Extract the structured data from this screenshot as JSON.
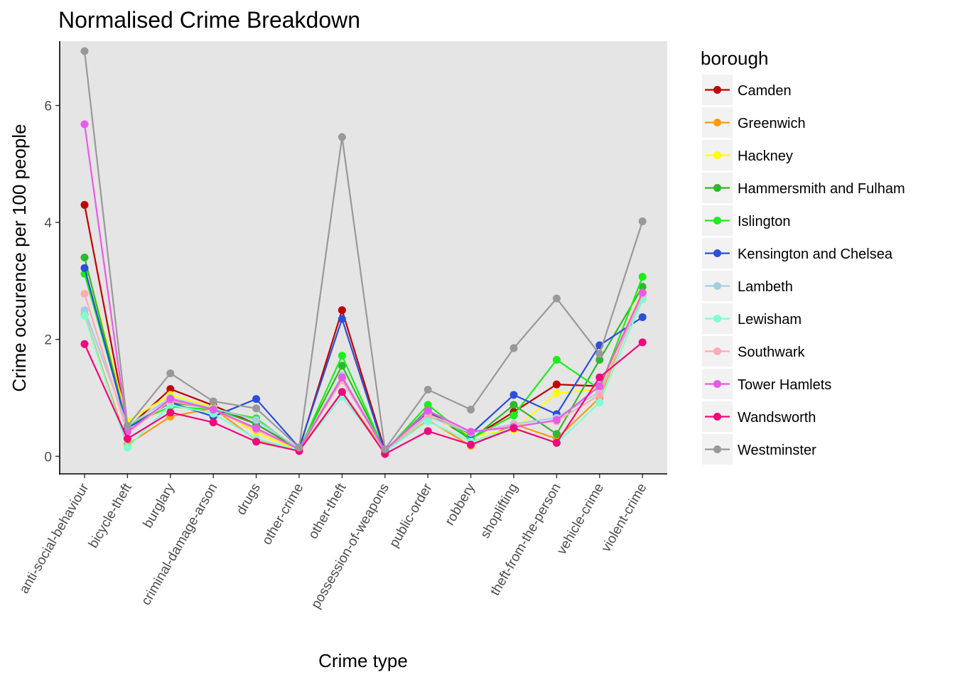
{
  "chart_data": {
    "type": "line",
    "title": "Normalised Crime Breakdown",
    "xlabel": "Crime type",
    "ylabel": "Crime occurence per 100 people",
    "ylim": [
      -0.3,
      7.1
    ],
    "yticks": [
      0,
      2,
      4,
      6
    ],
    "grid": false,
    "legend": {
      "title": "borough",
      "position": "right"
    },
    "categories": [
      "anti-social-behaviour",
      "bicycle-theft",
      "burglary",
      "criminal-damage-arson",
      "drugs",
      "other-crime",
      "other-theft",
      "possession-of-weapons",
      "public-order",
      "robbery",
      "shoplifting",
      "theft-from-the-person",
      "vehicle-crime",
      "violent-crime"
    ],
    "series": [
      {
        "name": "Camden",
        "color": "#c00000",
        "values": [
          4.3,
          0.48,
          1.15,
          0.87,
          0.55,
          0.12,
          2.5,
          0.1,
          0.75,
          0.3,
          0.76,
          1.23,
          1.2,
          2.8
        ]
      },
      {
        "name": "Greenwich",
        "color": "#ff9910",
        "values": [
          2.42,
          0.2,
          0.68,
          0.82,
          0.28,
          0.11,
          1.1,
          0.08,
          0.62,
          0.18,
          0.55,
          0.3,
          1.0,
          2.82
        ]
      },
      {
        "name": "Hackney",
        "color": "#ffff00",
        "values": [
          3.4,
          0.6,
          1.05,
          0.84,
          0.4,
          0.1,
          1.55,
          0.1,
          0.7,
          0.35,
          0.45,
          1.08,
          1.15,
          2.85
        ]
      },
      {
        "name": "Hammersmith and Fulham",
        "color": "#2eb82e",
        "values": [
          3.4,
          0.5,
          0.92,
          0.82,
          0.55,
          0.13,
          1.55,
          0.1,
          0.8,
          0.28,
          0.88,
          0.38,
          1.65,
          2.9
        ]
      },
      {
        "name": "Islington",
        "color": "#18f018",
        "values": [
          3.12,
          0.52,
          0.85,
          0.8,
          0.65,
          0.1,
          1.72,
          0.08,
          0.88,
          0.3,
          0.7,
          1.65,
          1.15,
          3.07
        ]
      },
      {
        "name": "Kensington and Chelsea",
        "color": "#2c4fd6",
        "values": [
          3.22,
          0.48,
          0.92,
          0.68,
          0.98,
          0.15,
          2.35,
          0.07,
          0.75,
          0.38,
          1.05,
          0.72,
          1.9,
          2.38
        ]
      },
      {
        "name": "Lambeth",
        "color": "#a6cee3",
        "values": [
          2.5,
          0.52,
          1.0,
          0.82,
          0.62,
          0.13,
          1.38,
          0.1,
          0.68,
          0.4,
          0.55,
          0.66,
          1.1,
          2.72
        ]
      },
      {
        "name": "Lewisham",
        "color": "#7fffd4",
        "values": [
          2.4,
          0.15,
          0.88,
          0.73,
          0.3,
          0.1,
          1.02,
          0.08,
          0.6,
          0.25,
          0.48,
          0.22,
          0.92,
          2.68
        ]
      },
      {
        "name": "Southwark",
        "color": "#ffaab5",
        "values": [
          2.78,
          0.4,
          0.95,
          0.8,
          0.45,
          0.12,
          1.3,
          0.1,
          0.72,
          0.42,
          0.52,
          0.6,
          1.05,
          2.78
        ]
      },
      {
        "name": "Tower Hamlets",
        "color": "#e85ae8",
        "values": [
          5.68,
          0.42,
          0.98,
          0.8,
          0.48,
          0.12,
          1.35,
          0.1,
          0.78,
          0.42,
          0.5,
          0.62,
          1.2,
          2.8
        ]
      },
      {
        "name": "Wandsworth",
        "color": "#f0087c",
        "values": [
          1.92,
          0.3,
          0.75,
          0.58,
          0.25,
          0.09,
          1.1,
          0.04,
          0.43,
          0.2,
          0.48,
          0.23,
          1.35,
          1.95
        ]
      },
      {
        "name": "Westminster",
        "color": "#999999",
        "values": [
          6.93,
          0.52,
          1.42,
          0.94,
          0.82,
          0.15,
          5.46,
          0.12,
          1.14,
          0.8,
          1.85,
          2.7,
          1.75,
          4.02
        ]
      }
    ]
  }
}
